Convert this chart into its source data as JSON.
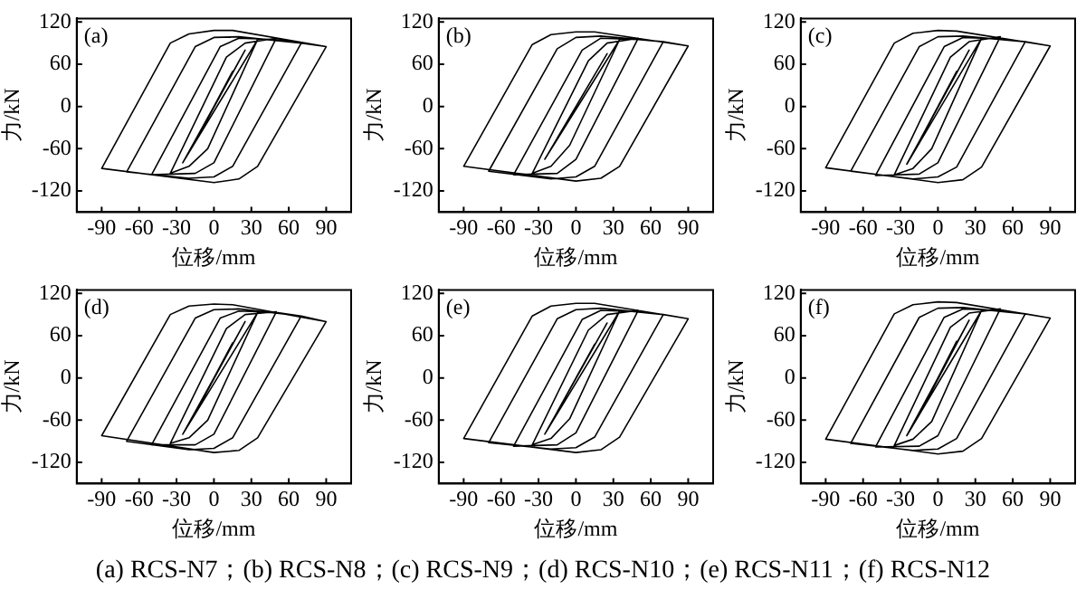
{
  "chart_data": [
    {
      "type": "line",
      "xlabel": "位移/mm",
      "ylabel": "力/kN",
      "annotations": [
        "(a)"
      ],
      "xlim": [
        -110,
        110
      ],
      "ylim": [
        -150,
        125
      ],
      "xticks": [
        -90,
        -60,
        -30,
        0,
        30,
        60,
        90
      ],
      "yticks": [
        -120,
        -60,
        0,
        60,
        120
      ],
      "series": [
        {
          "color": "#000000",
          "x": [
            0,
            15,
            -15,
            25,
            -25,
            35,
            -5,
            -20,
            -35,
            10,
            25,
            50,
            0,
            -15,
            -50,
            5,
            20,
            50,
            70,
            15,
            0,
            -20,
            -70,
            -15,
            0,
            20,
            70,
            90,
            35,
            20,
            0,
            -90,
            -35,
            -20,
            0,
            15,
            90
          ],
          "values": [
            0,
            50,
            -50,
            80,
            -80,
            95,
            -60,
            -85,
            -95,
            70,
            90,
            97,
            -80,
            -95,
            -97,
            85,
            97,
            95,
            90,
            -85,
            -100,
            -102,
            -93,
            85,
            98,
            99,
            90,
            85,
            -85,
            -103,
            -108,
            -88,
            90,
            103,
            108,
            108,
            85
          ]
        }
      ]
    },
    {
      "type": "line",
      "xlabel": "位移/mm",
      "ylabel": "力/kN",
      "annotations": [
        "(b)"
      ],
      "xlim": [
        -110,
        110
      ],
      "ylim": [
        -150,
        125
      ],
      "xticks": [
        -90,
        -60,
        -30,
        0,
        30,
        60,
        90
      ],
      "yticks": [
        -120,
        -60,
        0,
        60,
        120
      ],
      "series": [
        {
          "color": "#000000",
          "x": [
            0,
            15,
            -15,
            25,
            -25,
            35,
            -5,
            -20,
            -35,
            10,
            25,
            50,
            0,
            -15,
            -50,
            5,
            20,
            50,
            70,
            15,
            0,
            -20,
            -70,
            -15,
            0,
            20,
            70,
            90,
            35,
            20,
            0,
            -90,
            -35,
            -20,
            0,
            15,
            90
          ],
          "values": [
            0,
            45,
            -45,
            75,
            -75,
            95,
            -55,
            -85,
            -95,
            65,
            90,
            97,
            -75,
            -95,
            -97,
            80,
            97,
            95,
            92,
            -85,
            -100,
            -103,
            -92,
            82,
            98,
            100,
            92,
            86,
            -85,
            -102,
            -106,
            -85,
            88,
            102,
            106,
            106,
            86
          ]
        }
      ]
    },
    {
      "type": "line",
      "xlabel": "位移/mm",
      "ylabel": "力/kN",
      "annotations": [
        "(c)"
      ],
      "xlim": [
        -110,
        110
      ],
      "ylim": [
        -150,
        125
      ],
      "xticks": [
        -90,
        -60,
        -30,
        0,
        30,
        60,
        90
      ],
      "yticks": [
        -120,
        -60,
        0,
        60,
        120
      ],
      "series": [
        {
          "color": "#000000",
          "x": [
            0,
            15,
            -15,
            25,
            -25,
            35,
            -5,
            -20,
            -35,
            10,
            25,
            50,
            0,
            -15,
            -50,
            5,
            20,
            50,
            70,
            15,
            0,
            -20,
            -70,
            -15,
            0,
            20,
            70,
            90,
            35,
            20,
            0,
            -90,
            -35,
            -20,
            0,
            15,
            90
          ],
          "values": [
            0,
            50,
            -50,
            80,
            -82,
            97,
            -60,
            -88,
            -97,
            70,
            92,
            99,
            -80,
            -96,
            -98,
            85,
            98,
            96,
            92,
            -86,
            -100,
            -103,
            -92,
            85,
            99,
            100,
            92,
            86,
            -86,
            -104,
            -108,
            -87,
            90,
            104,
            108,
            107,
            86
          ]
        }
      ]
    },
    {
      "type": "line",
      "xlabel": "位移/mm",
      "ylabel": "力/kN",
      "annotations": [
        "(d)"
      ],
      "xlim": [
        -110,
        110
      ],
      "ylim": [
        -150,
        125
      ],
      "xticks": [
        -90,
        -60,
        -30,
        0,
        30,
        60,
        90
      ],
      "yticks": [
        -120,
        -60,
        0,
        60,
        120
      ],
      "series": [
        {
          "color": "#000000",
          "x": [
            0,
            15,
            -15,
            25,
            -25,
            35,
            -5,
            -20,
            -35,
            10,
            25,
            50,
            0,
            -15,
            -50,
            5,
            20,
            50,
            70,
            15,
            0,
            -20,
            -70,
            -15,
            0,
            20,
            70,
            90,
            35,
            20,
            0,
            -90,
            -35,
            -20,
            0,
            15,
            90
          ],
          "values": [
            0,
            50,
            -50,
            80,
            -80,
            93,
            -60,
            -85,
            -93,
            70,
            90,
            94,
            -80,
            -95,
            -95,
            85,
            95,
            93,
            88,
            -85,
            -100,
            -102,
            -90,
            85,
            97,
            98,
            88,
            80,
            -85,
            -103,
            -106,
            -82,
            90,
            102,
            105,
            104,
            80
          ]
        }
      ]
    },
    {
      "type": "line",
      "xlabel": "位移/mm",
      "ylabel": "力/kN",
      "annotations": [
        "(e)"
      ],
      "xlim": [
        -110,
        110
      ],
      "ylim": [
        -150,
        125
      ],
      "xticks": [
        -90,
        -60,
        -30,
        0,
        30,
        60,
        90
      ],
      "yticks": [
        -120,
        -60,
        0,
        60,
        120
      ],
      "series": [
        {
          "color": "#000000",
          "x": [
            0,
            15,
            -15,
            25,
            -25,
            35,
            -5,
            -20,
            -35,
            10,
            25,
            50,
            0,
            -15,
            -50,
            5,
            20,
            50,
            70,
            15,
            0,
            -20,
            -70,
            -15,
            0,
            20,
            70,
            90,
            35,
            20,
            0,
            -90,
            -35,
            -20,
            0,
            15,
            90
          ],
          "values": [
            0,
            48,
            -48,
            78,
            -80,
            95,
            -58,
            -86,
            -95,
            68,
            90,
            96,
            -78,
            -95,
            -97,
            83,
            96,
            94,
            90,
            -84,
            -99,
            -101,
            -92,
            84,
            97,
            99,
            90,
            84,
            -84,
            -102,
            -106,
            -86,
            88,
            102,
            106,
            106,
            84
          ]
        }
      ]
    },
    {
      "type": "line",
      "xlabel": "位移/mm",
      "ylabel": "力/kN",
      "annotations": [
        "(f)",
        "(a) RCS-N7；(b) RCS-N8；(c) RCS-N9；(d) RCS-N10；(e) RCS-N11；(f) RCS-N12"
      ],
      "xlim": [
        -110,
        110
      ],
      "ylim": [
        -150,
        125
      ],
      "xticks": [
        -90,
        -60,
        -30,
        0,
        30,
        60,
        90
      ],
      "yticks": [
        -120,
        -60,
        0,
        60,
        120
      ],
      "series": [
        {
          "color": "#000000",
          "x": [
            0,
            15,
            -15,
            25,
            -25,
            35,
            -5,
            -20,
            -35,
            10,
            25,
            50,
            0,
            -15,
            -50,
            5,
            20,
            50,
            70,
            15,
            0,
            -20,
            -70,
            -15,
            0,
            20,
            70,
            90,
            35,
            20,
            0,
            -90,
            -35,
            -20,
            0,
            15,
            90
          ],
          "values": [
            0,
            52,
            -52,
            82,
            -82,
            96,
            -62,
            -87,
            -96,
            72,
            92,
            98,
            -82,
            -97,
            -98,
            86,
            98,
            96,
            91,
            -86,
            -101,
            -103,
            -93,
            86,
            99,
            100,
            91,
            85,
            -86,
            -104,
            -108,
            -87,
            91,
            104,
            108,
            107,
            85
          ]
        }
      ]
    }
  ]
}
